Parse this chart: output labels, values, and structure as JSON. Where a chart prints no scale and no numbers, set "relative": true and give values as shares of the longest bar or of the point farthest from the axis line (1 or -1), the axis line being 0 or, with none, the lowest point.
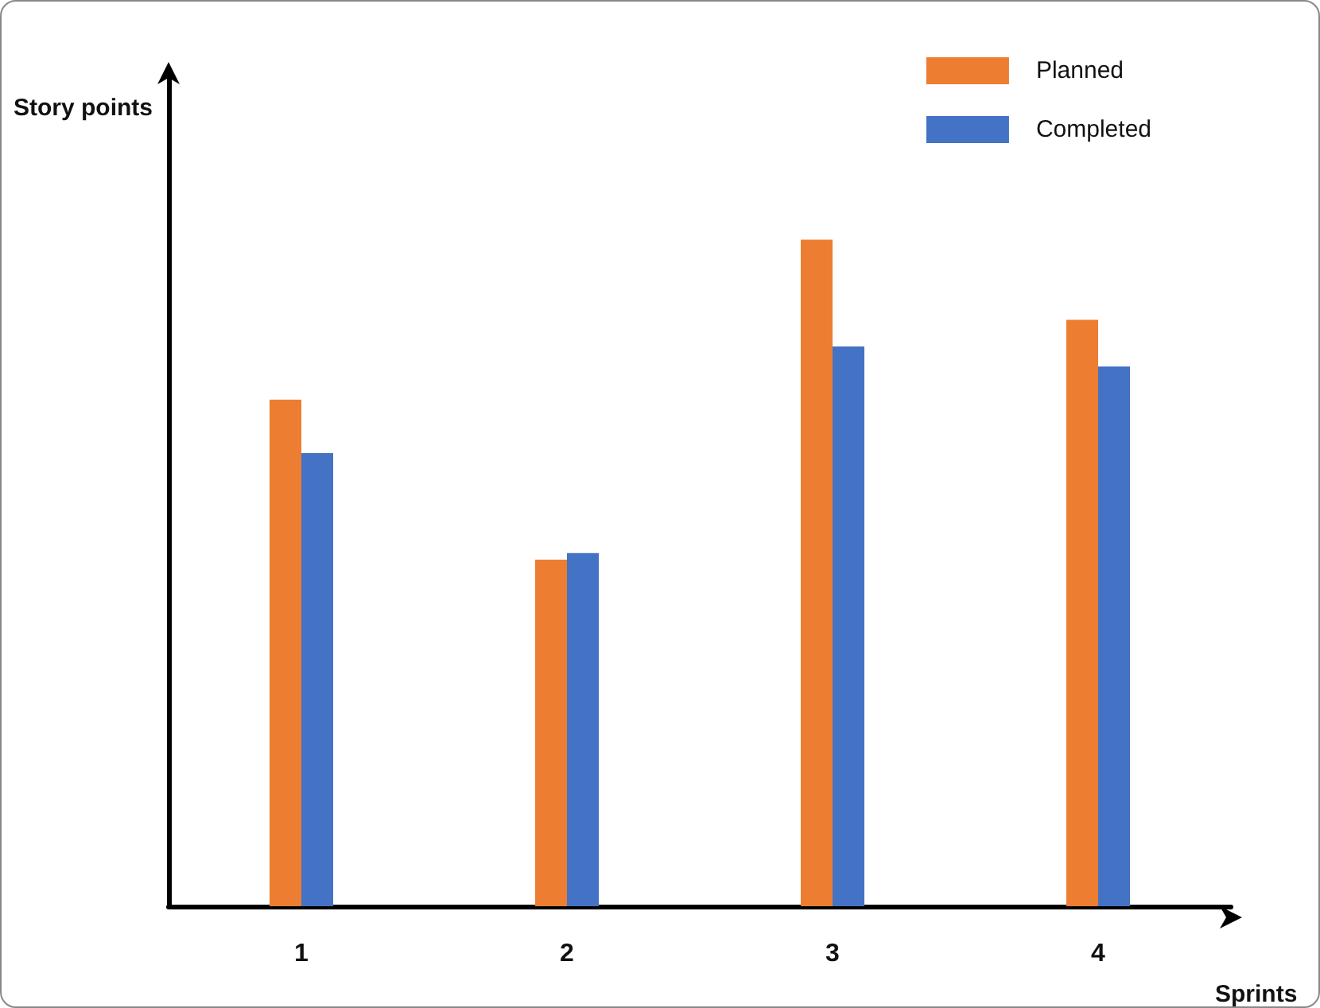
{
  "chart_data": {
    "type": "bar",
    "relative": true,
    "xlabel": "Sprints",
    "ylabel": "Story points",
    "categories": [
      "1",
      "2",
      "3",
      "4"
    ],
    "series": [
      {
        "name": "Planned",
        "color": "#ed7d31",
        "values": [
          0.76,
          0.52,
          1,
          0.88
        ]
      },
      {
        "name": "Completed",
        "color": "#4472c4",
        "values": [
          0.68,
          0.53,
          0.84,
          0.81
        ]
      }
    ],
    "legend": "top right",
    "grid": false
  }
}
